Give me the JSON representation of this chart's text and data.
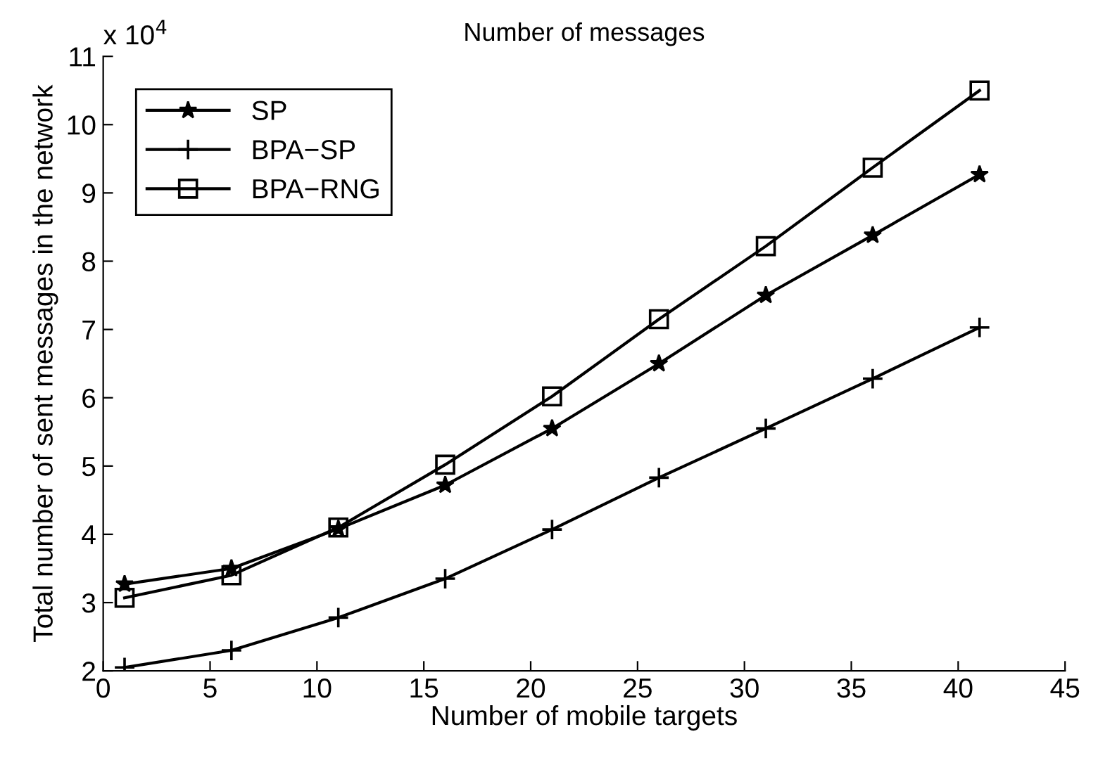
{
  "chart_data": {
    "type": "line",
    "title": "Number of messages",
    "xlabel": "Number of mobile targets",
    "ylabel": "Total number of sent messages in the network",
    "annotations": [
      "x 10$^{4}$"
    ],
    "x": [
      1,
      6,
      11,
      16,
      21,
      26,
      31,
      36,
      41
    ],
    "series": [
      {
        "name": "SP",
        "color": "#000000",
        "marker": "star",
        "values": [
          3.27,
          3.5,
          4.08,
          4.72,
          5.55,
          6.5,
          7.5,
          8.38,
          9.27
        ]
      },
      {
        "name": "BPA−SP",
        "color": "#000000",
        "marker": "cross",
        "values": [
          2.05,
          2.3,
          2.78,
          3.35,
          4.07,
          4.83,
          5.55,
          6.28,
          7.03
        ]
      },
      {
        "name": "BPA−RNG",
        "color": "#000000",
        "marker": "square",
        "values": [
          3.07,
          3.4,
          4.1,
          5.02,
          6.02,
          7.15,
          8.22,
          9.37,
          10.5
        ]
      }
    ],
    "xlim": [
      0,
      45
    ],
    "xticks": [
      0,
      5,
      10,
      15,
      20,
      25,
      30,
      35,
      40,
      45
    ],
    "ylim": [
      2,
      11
    ],
    "yticks": [
      2,
      3,
      4,
      5,
      6,
      7,
      8,
      9,
      10,
      11
    ],
    "grid": false,
    "legend": "top left",
    "line_style": "solid"
  }
}
